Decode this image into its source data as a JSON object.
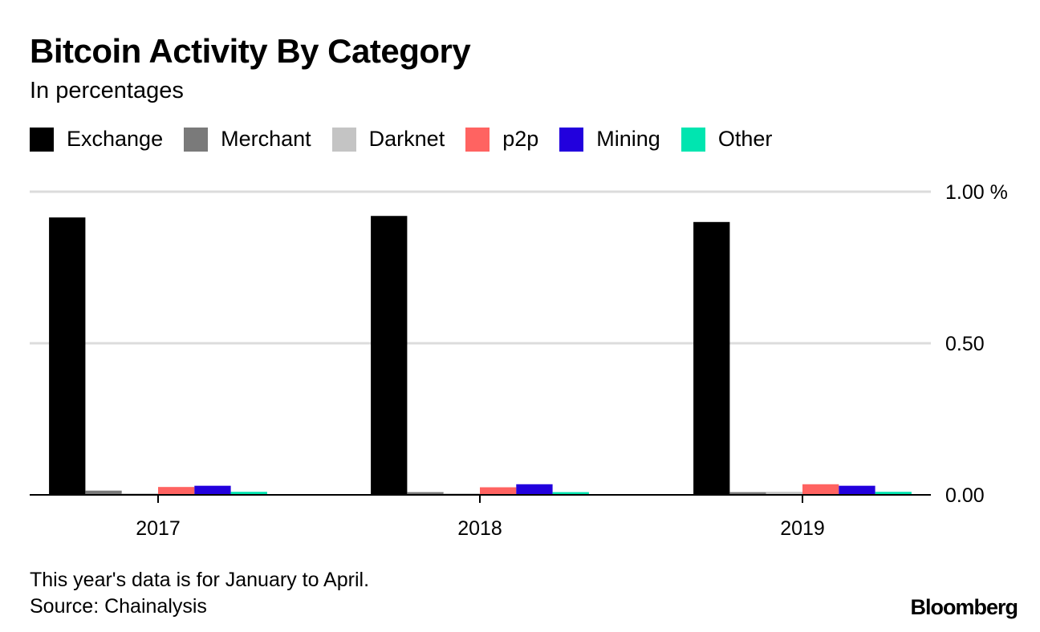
{
  "title": "Bitcoin Activity By Category",
  "subtitle": "In percentages",
  "footnote": "This year's data is for January to April.",
  "source": "Source: Chainalysis",
  "logo": "Bloomberg",
  "chart_data": {
    "type": "bar",
    "categories": [
      "2017",
      "2018",
      "2019"
    ],
    "series": [
      {
        "name": "Exchange",
        "color": "#000000",
        "values": [
          0.915,
          0.92,
          0.9
        ]
      },
      {
        "name": "Merchant",
        "color": "#7a7a7a",
        "values": [
          0.014,
          0.009,
          0.009
        ]
      },
      {
        "name": "Darknet",
        "color": "#c4c4c4",
        "values": [
          0.005,
          0.005,
          0.01
        ]
      },
      {
        "name": "p2p",
        "color": "#ff6361",
        "values": [
          0.026,
          0.025,
          0.035
        ]
      },
      {
        "name": "Mining",
        "color": "#2200dd",
        "values": [
          0.03,
          0.035,
          0.03
        ]
      },
      {
        "name": "Other",
        "color": "#00e5b0",
        "values": [
          0.01,
          0.009,
          0.01
        ]
      }
    ],
    "yticks": [
      0,
      0.5,
      1.0
    ],
    "ytick_labels": [
      "0.00",
      "0.50",
      "1.00 %"
    ],
    "ylim": [
      0,
      1.0
    ],
    "grid": true,
    "legend": "top",
    "yaxis_side": "right"
  }
}
